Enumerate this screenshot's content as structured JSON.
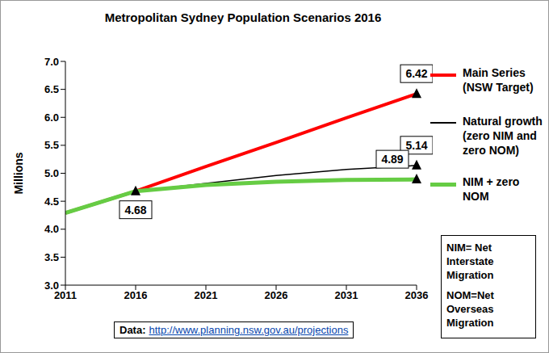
{
  "chart_data": {
    "type": "line",
    "title": "Metropolitan Sydney Population Scenarios 2016",
    "ylabel": "Millions",
    "x": [
      2011,
      2016,
      2021,
      2026,
      2031,
      2036
    ],
    "series": [
      {
        "name": "Main Series (NSW Target)",
        "color": "#ff0000",
        "values": [
          4.29,
          4.68,
          5.12,
          5.55,
          5.99,
          6.42
        ]
      },
      {
        "name": "Natural growth (zero NIM and zero NOM)",
        "color": "#000000",
        "values": [
          4.29,
          4.68,
          4.82,
          4.96,
          5.07,
          5.14
        ]
      },
      {
        "name": "NIM + zero NOM",
        "color": "#66cc44",
        "values": [
          4.29,
          4.68,
          4.79,
          4.85,
          4.88,
          4.89
        ]
      }
    ],
    "xlim": [
      2011,
      2036
    ],
    "xticks": [
      2011,
      2016,
      2021,
      2026,
      2031,
      2036
    ],
    "ylim": [
      3,
      7
    ],
    "yticks": [
      {
        "value": 3,
        "label": "3.0"
      },
      3.5,
      {
        "value": 4,
        "label": "4.0"
      },
      4.5,
      {
        "value": 5,
        "label": "5.0"
      },
      5.5,
      {
        "value": 6,
        "label": "6.0"
      },
      6.5,
      {
        "value": 7,
        "label": "7.0"
      }
    ],
    "grid": false,
    "annotations": [
      {
        "x": 2016,
        "y": 4.68,
        "text": "4.68"
      },
      {
        "x": 2036,
        "y": 6.42,
        "text": "6.42"
      },
      {
        "x": 2036,
        "y": 5.14,
        "text": "5.14"
      },
      {
        "x": 2036,
        "y": 4.89,
        "text": "4.89"
      }
    ],
    "notes": [
      "NIM= Net Interstate Migration",
      "NOM=Net Overseas Migration"
    ],
    "source_label": "Data:",
    "source_url": "http://www.planning.nsw.gov.au/projections"
  }
}
